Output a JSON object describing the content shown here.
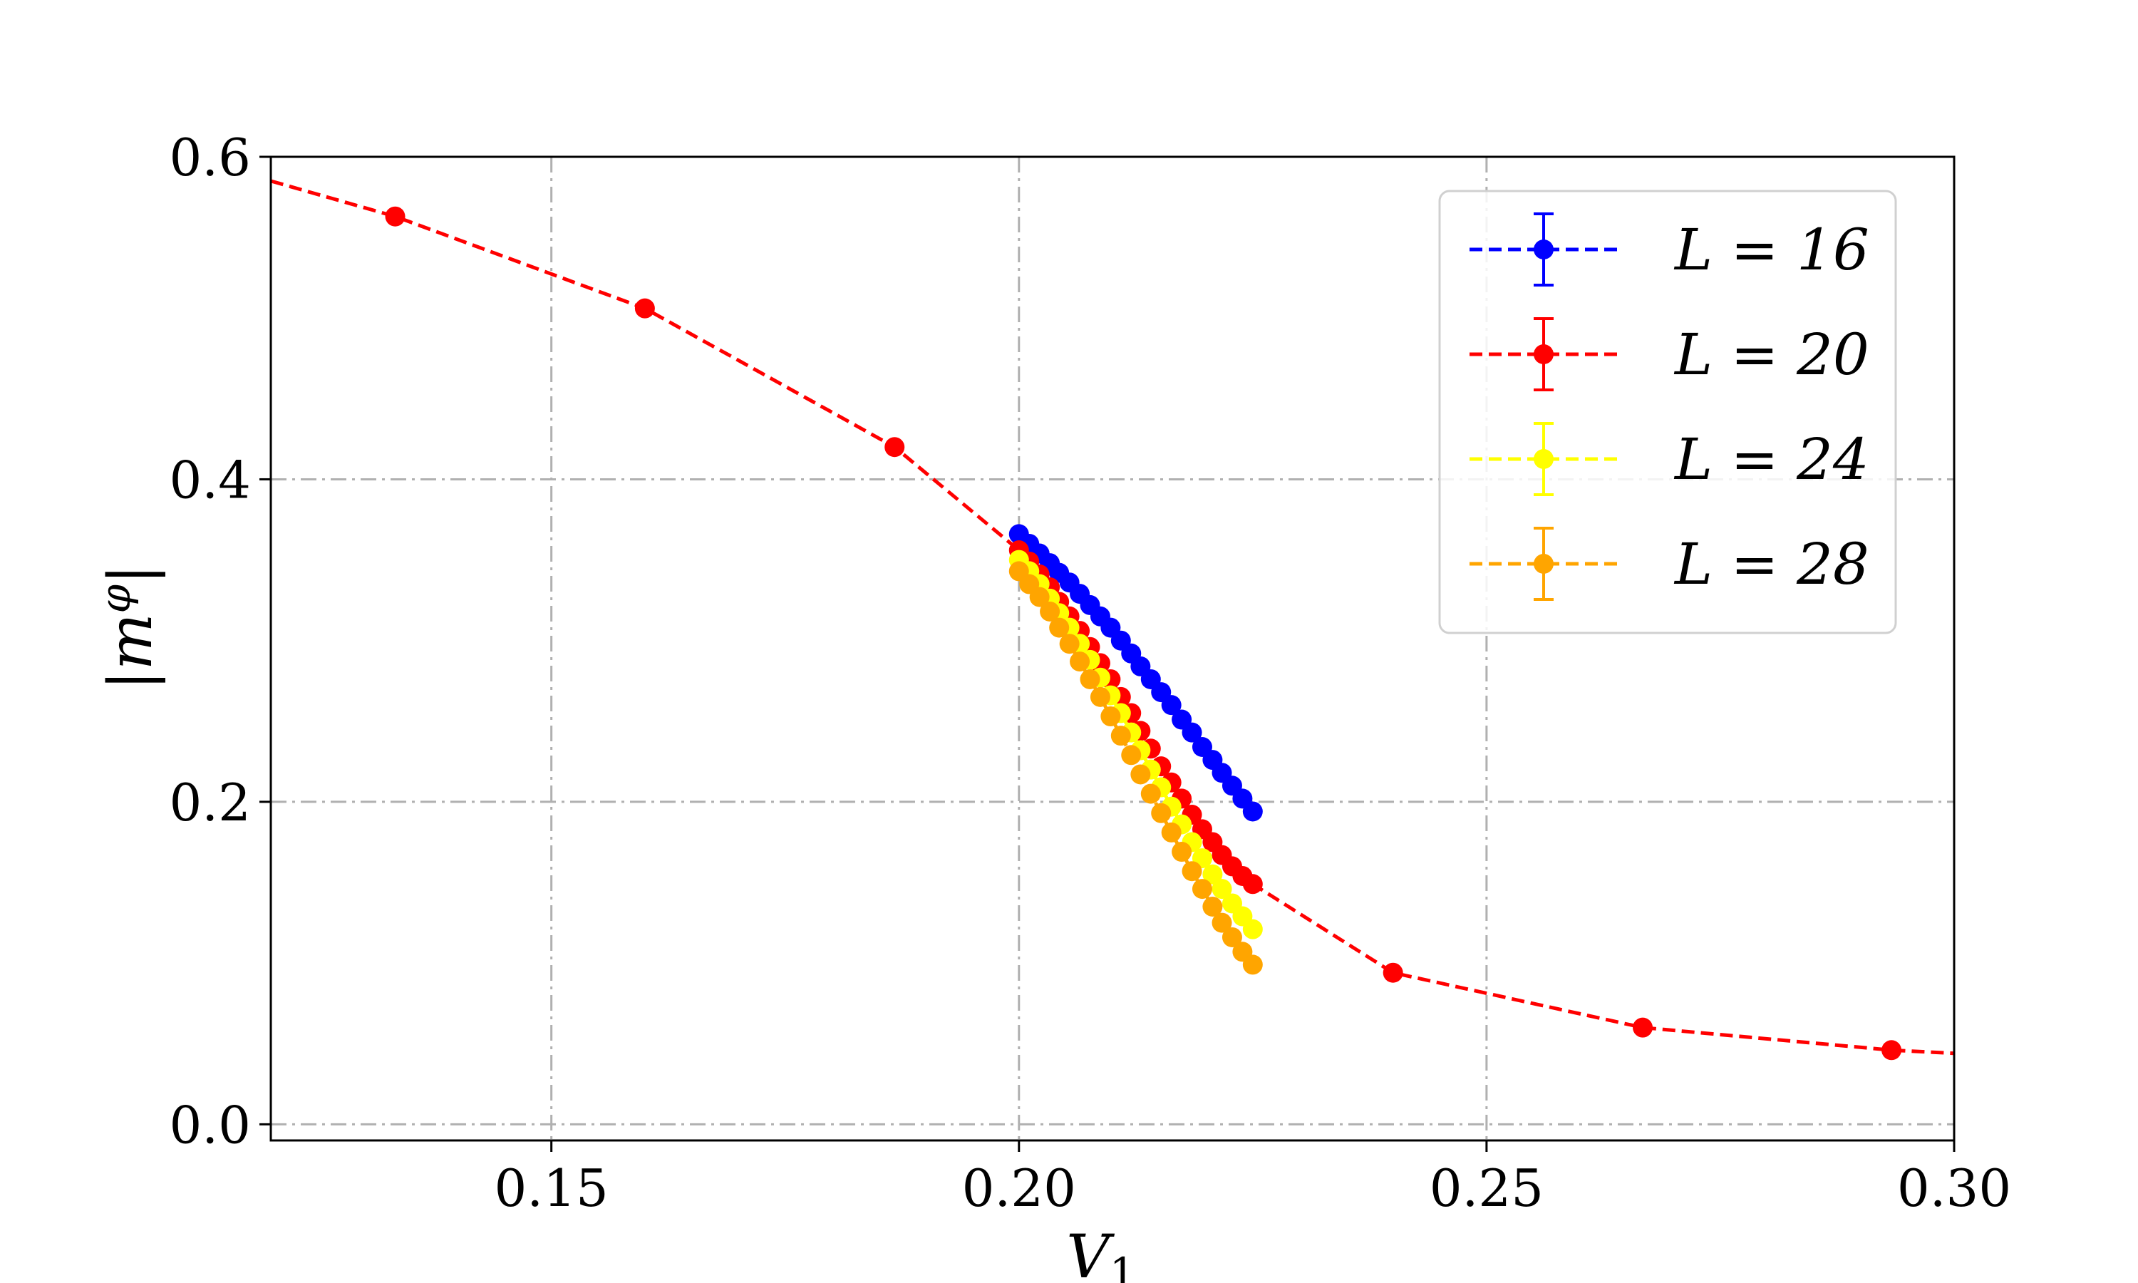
{
  "chart_data": {
    "type": "line",
    "title": "",
    "xlabel": "V",
    "xlabel_sub": "1",
    "ylabel": "|m",
    "ylabel_sup": "φ",
    "ylabel_end": "|",
    "xlim": [
      0.12,
      0.3
    ],
    "ylim": [
      -0.01,
      0.6
    ],
    "xticks": [
      0.15,
      0.2,
      0.25,
      0.3
    ],
    "xtick_labels": [
      "0.15",
      "0.20",
      "0.25",
      "0.30"
    ],
    "yticks": [
      0.0,
      0.2,
      0.4,
      0.6
    ],
    "ytick_labels": [
      "0.0",
      "0.2",
      "0.4",
      "0.6"
    ],
    "grid": true,
    "legend_position": "top-right",
    "series": [
      {
        "name": "L = 16",
        "color": "#0000ff",
        "x": [
          0.2,
          0.2011,
          0.2022,
          0.2033,
          0.2043,
          0.2054,
          0.2065,
          0.2076,
          0.2087,
          0.2098,
          0.2109,
          0.212,
          0.213,
          0.2141,
          0.2152,
          0.2163,
          0.2174,
          0.2185,
          0.2196,
          0.2207,
          0.2217,
          0.2228,
          0.2239,
          0.225
        ],
        "y": [
          0.366,
          0.36,
          0.354,
          0.348,
          0.342,
          0.336,
          0.329,
          0.322,
          0.315,
          0.308,
          0.3,
          0.292,
          0.284,
          0.276,
          0.268,
          0.26,
          0.251,
          0.243,
          0.234,
          0.226,
          0.218,
          0.21,
          0.202,
          0.194
        ]
      },
      {
        "name": "L = 20",
        "color": "#ff0000",
        "x": [
          0.12,
          0.1333,
          0.16,
          0.1867,
          0.2,
          0.2011,
          0.2022,
          0.2033,
          0.2043,
          0.2054,
          0.2065,
          0.2076,
          0.2087,
          0.2098,
          0.2109,
          0.212,
          0.213,
          0.2141,
          0.2152,
          0.2163,
          0.2174,
          0.2185,
          0.2196,
          0.2207,
          0.2217,
          0.2228,
          0.2239,
          0.225,
          0.24,
          0.2667,
          0.2933,
          0.3
        ],
        "y": [
          0.585,
          0.563,
          0.506,
          0.42,
          0.356,
          0.349,
          0.341,
          0.333,
          0.324,
          0.315,
          0.306,
          0.296,
          0.286,
          0.276,
          0.265,
          0.255,
          0.244,
          0.233,
          0.222,
          0.212,
          0.202,
          0.192,
          0.183,
          0.175,
          0.167,
          0.16,
          0.154,
          0.149,
          0.094,
          0.06,
          0.046,
          0.044
        ]
      },
      {
        "name": "L = 24",
        "color": "#ffff00",
        "x": [
          0.2,
          0.2011,
          0.2022,
          0.2033,
          0.2043,
          0.2054,
          0.2065,
          0.2076,
          0.2087,
          0.2098,
          0.2109,
          0.212,
          0.213,
          0.2141,
          0.2152,
          0.2163,
          0.2174,
          0.2185,
          0.2196,
          0.2207,
          0.2217,
          0.2228,
          0.2239,
          0.225
        ],
        "y": [
          0.35,
          0.343,
          0.335,
          0.326,
          0.317,
          0.308,
          0.298,
          0.288,
          0.277,
          0.266,
          0.255,
          0.243,
          0.232,
          0.22,
          0.209,
          0.197,
          0.186,
          0.175,
          0.165,
          0.155,
          0.146,
          0.137,
          0.129,
          0.121
        ]
      },
      {
        "name": "L = 28",
        "color": "#ffa500",
        "x": [
          0.2,
          0.2011,
          0.2022,
          0.2033,
          0.2043,
          0.2054,
          0.2065,
          0.2076,
          0.2087,
          0.2098,
          0.2109,
          0.212,
          0.213,
          0.2141,
          0.2152,
          0.2163,
          0.2174,
          0.2185,
          0.2196,
          0.2207,
          0.2217,
          0.2228,
          0.2239,
          0.225
        ],
        "y": [
          0.343,
          0.335,
          0.327,
          0.318,
          0.308,
          0.298,
          0.287,
          0.276,
          0.265,
          0.253,
          0.241,
          0.229,
          0.217,
          0.205,
          0.193,
          0.181,
          0.169,
          0.157,
          0.146,
          0.135,
          0.125,
          0.116,
          0.107,
          0.099
        ]
      }
    ]
  }
}
